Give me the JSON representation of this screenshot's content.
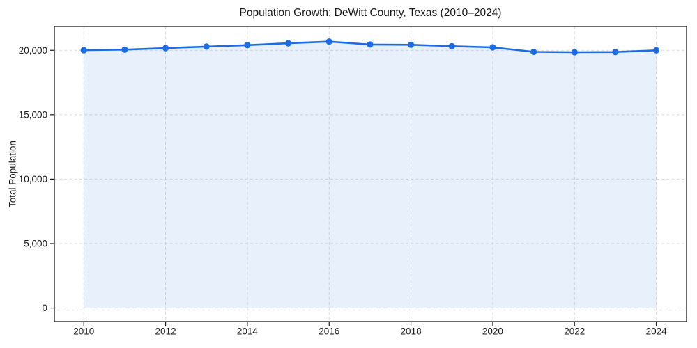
{
  "chart_data": {
    "type": "area",
    "title": "Population Growth: DeWitt County, Texas (2010–2024)",
    "xlabel": "",
    "ylabel": "Total Population",
    "x": [
      2010,
      2011,
      2012,
      2013,
      2014,
      2015,
      2016,
      2017,
      2018,
      2019,
      2020,
      2021,
      2022,
      2023,
      2024
    ],
    "values": [
      20010,
      20050,
      20170,
      20290,
      20400,
      20550,
      20680,
      20450,
      20430,
      20320,
      20230,
      19880,
      19850,
      19870,
      20000
    ],
    "series_name": "Total Population",
    "xticks": [
      2010,
      2012,
      2014,
      2016,
      2018,
      2020,
      2022,
      2024
    ],
    "xtick_labels": [
      "2010",
      "2012",
      "2014",
      "2016",
      "2018",
      "2020",
      "2022",
      "2024"
    ],
    "yticks": [
      0,
      5000,
      10000,
      15000,
      20000
    ],
    "ytick_labels": [
      "0",
      "5,000",
      "10,000",
      "15,000",
      "20,000"
    ],
    "xlim": [
      2009.28,
      2024.74
    ],
    "ylim": [
      -1050,
      21850
    ],
    "grid": true,
    "legend_position": "none",
    "colors": {
      "line": "#1c6ce6",
      "marker": "#1c6ce6",
      "fill": "#1c6ce6",
      "fill_opacity": 0.1,
      "grid": "#dadada",
      "text": "#1a1a1a",
      "spine": "#1a1a1a",
      "background": "#ffffff"
    }
  }
}
